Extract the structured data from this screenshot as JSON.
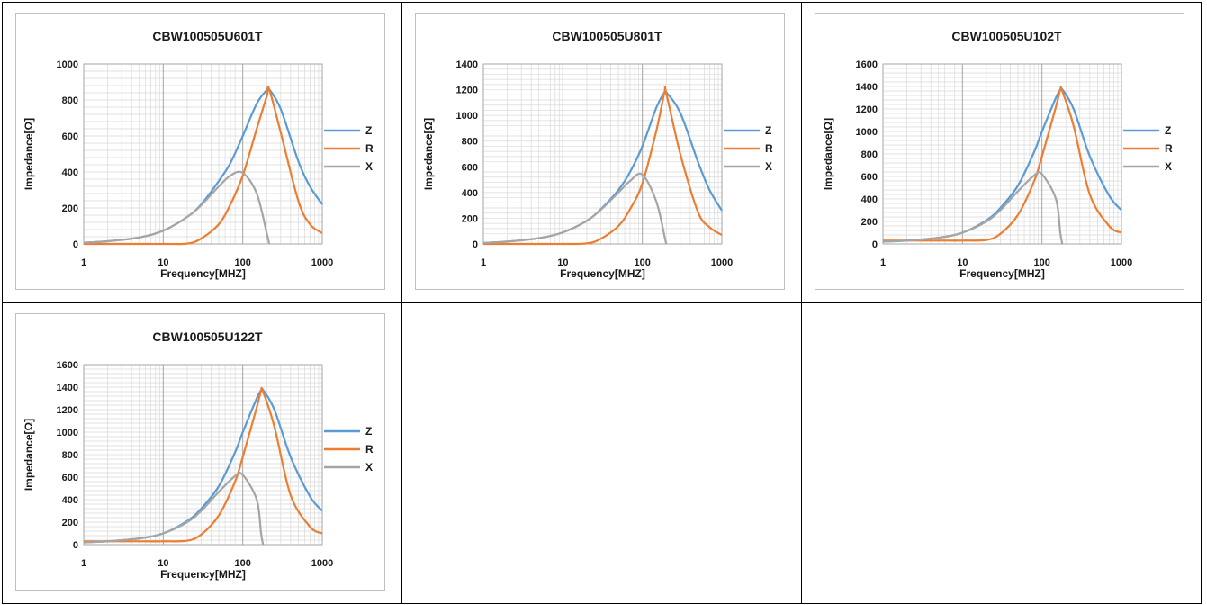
{
  "chart_data": [
    {
      "type": "line",
      "title": "CBW100505U601T",
      "xlabel": "Frequency[MHZ]",
      "ylabel": "Impedance[Ω]",
      "x_scale": "log",
      "xlim": [
        1,
        1000
      ],
      "ylim": [
        0,
        1000
      ],
      "yticks": [
        0,
        200,
        400,
        600,
        800,
        1000
      ],
      "xticks": [
        1,
        10,
        100,
        1000
      ],
      "grid": true,
      "legend_position": "right",
      "x": [
        1,
        2,
        5,
        10,
        20,
        30,
        50,
        70,
        100,
        150,
        200,
        215,
        300,
        500,
        700,
        1000
      ],
      "series": [
        {
          "name": "Z",
          "color": "#5b9bd5",
          "values": [
            7,
            15,
            36,
            74,
            150,
            220,
            350,
            450,
            600,
            780,
            855,
            860,
            750,
            460,
            320,
            220
          ]
        },
        {
          "name": "R",
          "color": "#ed7d31",
          "values": [
            0,
            0,
            0,
            0,
            2,
            30,
            110,
            220,
            380,
            640,
            820,
            860,
            620,
            240,
            110,
            60
          ]
        },
        {
          "name": "X",
          "color": "#a5a5a5",
          "values": [
            7,
            15,
            36,
            74,
            150,
            215,
            320,
            380,
            395,
            280,
            60,
            0,
            null,
            null,
            null,
            null
          ]
        }
      ]
    },
    {
      "type": "line",
      "title": "CBW100505U801T",
      "xlabel": "Frequency[MHZ]",
      "ylabel": "Impedance[Ω]",
      "x_scale": "log",
      "xlim": [
        1,
        1000
      ],
      "ylim": [
        0,
        1400
      ],
      "yticks": [
        0,
        200,
        400,
        600,
        800,
        1000,
        1200,
        1400
      ],
      "xticks": [
        1,
        10,
        100,
        1000
      ],
      "grid": true,
      "legend_position": "right",
      "x": [
        1,
        2,
        5,
        10,
        20,
        30,
        50,
        70,
        100,
        150,
        190,
        200,
        300,
        500,
        700,
        1000
      ],
      "series": [
        {
          "name": "Z",
          "color": "#5b9bd5",
          "values": [
            8,
            18,
            45,
            90,
            180,
            270,
            420,
            560,
            760,
            1060,
            1180,
            1180,
            1020,
            640,
            420,
            260
          ]
        },
        {
          "name": "R",
          "color": "#ed7d31",
          "values": [
            0,
            0,
            0,
            0,
            4,
            40,
            140,
            270,
            470,
            880,
            1180,
            1170,
            700,
            250,
            130,
            70
          ]
        },
        {
          "name": "X",
          "color": "#a5a5a5",
          "values": [
            8,
            18,
            45,
            90,
            180,
            265,
            400,
            490,
            540,
            330,
            60,
            0,
            null,
            null,
            null,
            null
          ]
        }
      ]
    },
    {
      "type": "line",
      "title": "CBW100505U102T",
      "xlabel": "Frequency[MHZ]",
      "ylabel": "Impedance[Ω]",
      "x_scale": "log",
      "xlim": [
        1,
        1000
      ],
      "ylim": [
        0,
        1600
      ],
      "yticks": [
        0,
        200,
        400,
        600,
        800,
        1000,
        1200,
        1400,
        1600
      ],
      "xticks": [
        1,
        10,
        100,
        1000
      ],
      "grid": true,
      "legend_position": "right",
      "x": [
        1,
        2,
        5,
        10,
        20,
        30,
        50,
        80,
        100,
        150,
        170,
        180,
        250,
        400,
        700,
        1000
      ],
      "series": [
        {
          "name": "Z",
          "color": "#5b9bd5",
          "values": [
            20,
            30,
            55,
            100,
            210,
            320,
            520,
            820,
            1000,
            1300,
            1370,
            1375,
            1200,
            780,
            430,
            300
          ]
        },
        {
          "name": "R",
          "color": "#ed7d31",
          "values": [
            30,
            30,
            30,
            30,
            35,
            90,
            260,
            560,
            780,
            1220,
            1370,
            1360,
            1050,
            440,
            160,
            100
          ]
        },
        {
          "name": "X",
          "color": "#a5a5a5",
          "values": [
            20,
            30,
            55,
            100,
            200,
            300,
            470,
            610,
            620,
            400,
            100,
            0,
            null,
            null,
            null,
            null
          ]
        }
      ]
    },
    {
      "type": "line",
      "title": "CBW100505U122T",
      "xlabel": "Frequency[MHZ]",
      "ylabel": "Impedance[Ω]",
      "x_scale": "log",
      "xlim": [
        1,
        1000
      ],
      "ylim": [
        0,
        1600
      ],
      "yticks": [
        0,
        200,
        400,
        600,
        800,
        1000,
        1200,
        1400,
        1600
      ],
      "xticks": [
        1,
        10,
        100,
        1000
      ],
      "grid": true,
      "legend_position": "right",
      "x": [
        1,
        2,
        5,
        10,
        20,
        30,
        50,
        80,
        100,
        150,
        170,
        180,
        250,
        400,
        700,
        1000
      ],
      "series": [
        {
          "name": "Z",
          "color": "#5b9bd5",
          "values": [
            20,
            30,
            55,
            100,
            210,
            320,
            520,
            820,
            1000,
            1300,
            1370,
            1375,
            1200,
            780,
            430,
            300
          ]
        },
        {
          "name": "R",
          "color": "#ed7d31",
          "values": [
            30,
            30,
            30,
            30,
            35,
            90,
            260,
            560,
            780,
            1220,
            1370,
            1360,
            1050,
            440,
            160,
            100
          ]
        },
        {
          "name": "X",
          "color": "#a5a5a5",
          "values": [
            20,
            30,
            55,
            100,
            200,
            300,
            470,
            610,
            620,
            400,
            100,
            0,
            null,
            null,
            null,
            null
          ]
        }
      ]
    }
  ],
  "colors": {
    "grid": "#d9d9d9",
    "gridMajor": "#a6a6a6",
    "border": "#bfbfbf"
  }
}
